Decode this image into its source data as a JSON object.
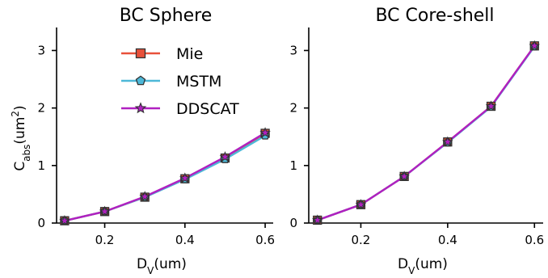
{
  "chart_data": [
    {
      "type": "line",
      "title": "BC Sphere",
      "xlabel": "D",
      "xlabel_sub": "V",
      "xlabel_unit": "(um)",
      "ylabel": "C",
      "ylabel_sub": "abs",
      "ylabel_unit": "(um",
      "ylabel_sup": "2",
      "ylabel_close": ")",
      "xlim": [
        0.08,
        0.62
      ],
      "ylim": [
        0,
        3.4
      ],
      "xticks": [
        0.2,
        0.4,
        0.6
      ],
      "xtick_labels": [
        "0.2",
        "0.4",
        "0.6"
      ],
      "yticks": [
        0,
        1,
        2,
        3
      ],
      "ytick_labels": [
        "0",
        "1",
        "2",
        "3"
      ],
      "legend": "upper-center",
      "x": [
        0.1,
        0.2,
        0.3,
        0.4,
        0.5,
        0.6
      ],
      "series": [
        {
          "name": "Mie",
          "color": "#e8503a",
          "marker": "square",
          "values": [
            0.04,
            0.2,
            0.45,
            0.77,
            1.13,
            1.56
          ]
        },
        {
          "name": "MSTM",
          "color": "#4db8d8",
          "marker": "pentagon",
          "values": [
            0.04,
            0.2,
            0.45,
            0.76,
            1.11,
            1.52
          ]
        },
        {
          "name": "DDSCAT",
          "color": "#b020c0",
          "marker": "star",
          "values": [
            0.04,
            0.2,
            0.46,
            0.78,
            1.15,
            1.57
          ]
        }
      ]
    },
    {
      "type": "line",
      "title": "BC Core-shell",
      "xlabel": "D",
      "xlabel_sub": "V",
      "xlabel_unit": "(um)",
      "xlim": [
        0.08,
        0.62
      ],
      "ylim": [
        0,
        3.4
      ],
      "xticks": [
        0.2,
        0.4,
        0.6
      ],
      "xtick_labels": [
        "0.2",
        "0.4",
        "0.6"
      ],
      "yticks": [
        0,
        1,
        2,
        3
      ],
      "ytick_labels": [
        "0",
        "1",
        "2",
        "3"
      ],
      "x": [
        0.1,
        0.2,
        0.3,
        0.4,
        0.5,
        0.6
      ],
      "series": [
        {
          "name": "Mie",
          "color": "#e8503a",
          "marker": "square",
          "values": [
            0.05,
            0.32,
            0.81,
            1.41,
            2.03,
            3.08
          ]
        },
        {
          "name": "MSTM",
          "color": "#4db8d8",
          "marker": "pentagon",
          "values": [
            0.05,
            0.32,
            0.81,
            1.4,
            2.02,
            3.07
          ]
        },
        {
          "name": "DDSCAT",
          "color": "#b020c0",
          "marker": "star",
          "values": [
            0.05,
            0.32,
            0.81,
            1.41,
            2.03,
            3.08
          ]
        }
      ]
    }
  ]
}
